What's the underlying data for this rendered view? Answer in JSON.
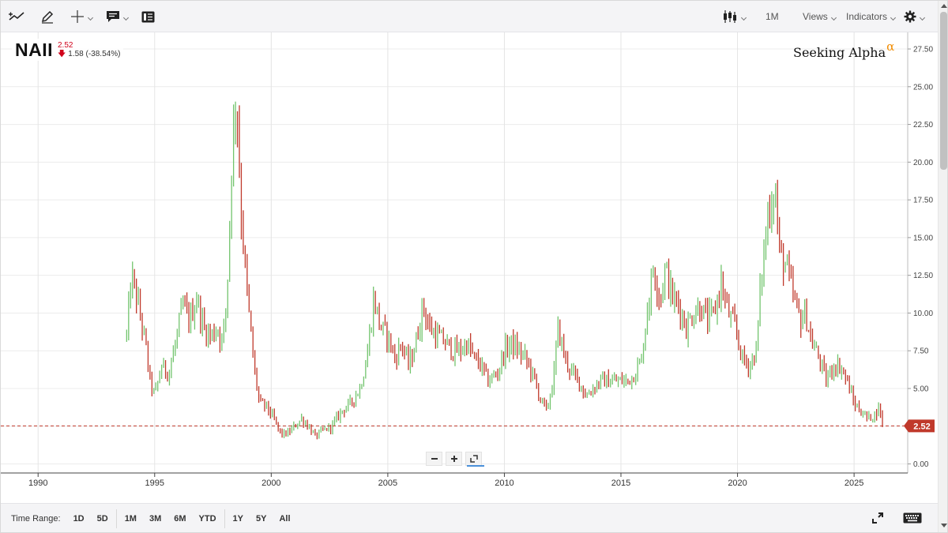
{
  "toolbar": {
    "left_tools": [
      "trend-line-icon",
      "pencil-icon",
      "crosshair-icon",
      "comment-icon",
      "news-icon"
    ],
    "interval_label": "1M",
    "views_label": "Views",
    "indicators_label": "Indicators"
  },
  "header": {
    "symbol": "NAII",
    "last_price": "2.52",
    "change": "1.58 (-38.54%)",
    "brand": "Seeking Alpha",
    "brand_mark": "α"
  },
  "bottom_bar": {
    "time_range_label": "Time Range:",
    "ranges": [
      "1D",
      "5D",
      "1M",
      "3M",
      "6M",
      "YTD",
      "1Y",
      "5Y",
      "All"
    ]
  },
  "colors": {
    "up": "#72c46d",
    "down": "#c0392b",
    "last_price_tag": "#c0392b",
    "grid": "#ececec"
  },
  "chart_data": {
    "type": "bar",
    "subtype": "ohlc-monthly",
    "symbol": "NAII",
    "x_ticks": [
      "1990",
      "1995",
      "2000",
      "2005",
      "2010",
      "2015",
      "2020",
      "2025"
    ],
    "xlim": [
      1988.4,
      2027.3
    ],
    "y_ticks": [
      "0.00",
      "2.50",
      "5.00",
      "7.50",
      "10.00",
      "12.50",
      "15.00",
      "17.50",
      "20.00",
      "22.50",
      "25.00",
      "27.50"
    ],
    "ylim": [
      -0.6,
      28.6
    ],
    "last_price": 2.52,
    "last_price_label": "2.52",
    "grid": true,
    "price_path": [
      [
        1993.8,
        8.5
      ],
      [
        1994.0,
        12.5
      ],
      [
        1994.3,
        10.5
      ],
      [
        1994.6,
        8.0
      ],
      [
        1994.8,
        5.5
      ],
      [
        1995.0,
        4.5
      ],
      [
        1995.3,
        6.5
      ],
      [
        1995.6,
        6.0
      ],
      [
        1995.9,
        8.0
      ],
      [
        1996.2,
        10.5
      ],
      [
        1996.5,
        9.5
      ],
      [
        1996.8,
        11.0
      ],
      [
        1997.1,
        9.0
      ],
      [
        1997.4,
        8.5
      ],
      [
        1997.7,
        9.0
      ],
      [
        1997.9,
        8.0
      ],
      [
        1998.1,
        11.0
      ],
      [
        1998.3,
        20.0
      ],
      [
        1998.5,
        25.0
      ],
      [
        1998.7,
        17.0
      ],
      [
        1998.9,
        12.5
      ],
      [
        1999.1,
        9.0
      ],
      [
        1999.3,
        6.0
      ],
      [
        1999.5,
        4.0
      ],
      [
        1999.8,
        3.8
      ],
      [
        2000.1,
        3.0
      ],
      [
        2000.4,
        2.0
      ],
      [
        2000.7,
        2.0
      ],
      [
        2001.0,
        2.5
      ],
      [
        2001.3,
        3.0
      ],
      [
        2001.6,
        2.5
      ],
      [
        2001.9,
        1.8
      ],
      [
        2002.2,
        2.2
      ],
      [
        2002.6,
        2.5
      ],
      [
        2003.0,
        3.5
      ],
      [
        2003.4,
        4.0
      ],
      [
        2003.8,
        5.0
      ],
      [
        2004.1,
        7.0
      ],
      [
        2004.4,
        11.0
      ],
      [
        2004.7,
        9.0
      ],
      [
        2005.0,
        8.5
      ],
      [
        2005.3,
        7.0
      ],
      [
        2005.6,
        8.0
      ],
      [
        2005.9,
        6.5
      ],
      [
        2006.2,
        8.0
      ],
      [
        2006.5,
        10.5
      ],
      [
        2006.8,
        9.0
      ],
      [
        2007.1,
        8.5
      ],
      [
        2007.5,
        8.0
      ],
      [
        2007.8,
        7.5
      ],
      [
        2008.1,
        7.5
      ],
      [
        2008.4,
        8.0
      ],
      [
        2008.7,
        7.0
      ],
      [
        2009.0,
        6.5
      ],
      [
        2009.3,
        5.5
      ],
      [
        2009.7,
        6.0
      ],
      [
        2010.0,
        7.5
      ],
      [
        2010.3,
        8.0
      ],
      [
        2010.6,
        7.5
      ],
      [
        2010.9,
        7.0
      ],
      [
        2011.2,
        6.0
      ],
      [
        2011.5,
        4.5
      ],
      [
        2011.8,
        3.5
      ],
      [
        2012.1,
        5.5
      ],
      [
        2012.3,
        9.0
      ],
      [
        2012.6,
        7.0
      ],
      [
        2012.9,
        6.0
      ],
      [
        2013.2,
        5.5
      ],
      [
        2013.5,
        4.5
      ],
      [
        2013.8,
        5.0
      ],
      [
        2014.1,
        5.5
      ],
      [
        2014.4,
        5.5
      ],
      [
        2014.7,
        5.5
      ],
      [
        2015.0,
        5.5
      ],
      [
        2015.3,
        5.5
      ],
      [
        2015.6,
        6.0
      ],
      [
        2015.9,
        7.0
      ],
      [
        2016.1,
        10.0
      ],
      [
        2016.4,
        13.0
      ],
      [
        2016.7,
        11.0
      ],
      [
        2016.9,
        13.0
      ],
      [
        2017.2,
        11.0
      ],
      [
        2017.5,
        10.5
      ],
      [
        2017.8,
        9.0
      ],
      [
        2018.1,
        10.0
      ],
      [
        2018.4,
        10.5
      ],
      [
        2018.7,
        9.5
      ],
      [
        2019.0,
        10.0
      ],
      [
        2019.3,
        12.0
      ],
      [
        2019.6,
        10.0
      ],
      [
        2019.9,
        9.0
      ],
      [
        2020.2,
        7.0
      ],
      [
        2020.5,
        6.5
      ],
      [
        2020.8,
        7.5
      ],
      [
        2021.0,
        12.0
      ],
      [
        2021.3,
        16.5
      ],
      [
        2021.6,
        18.5
      ],
      [
        2021.8,
        14.0
      ],
      [
        2022.1,
        13.0
      ],
      [
        2022.4,
        11.0
      ],
      [
        2022.7,
        9.5
      ],
      [
        2022.9,
        10.0
      ],
      [
        2023.2,
        8.0
      ],
      [
        2023.5,
        7.0
      ],
      [
        2023.8,
        5.5
      ],
      [
        2024.1,
        6.5
      ],
      [
        2024.4,
        6.5
      ],
      [
        2024.7,
        5.5
      ],
      [
        2025.0,
        4.0
      ],
      [
        2025.3,
        3.5
      ],
      [
        2025.6,
        3.0
      ],
      [
        2025.9,
        3.3
      ],
      [
        2026.1,
        3.8
      ],
      [
        2026.25,
        2.52
      ]
    ]
  }
}
